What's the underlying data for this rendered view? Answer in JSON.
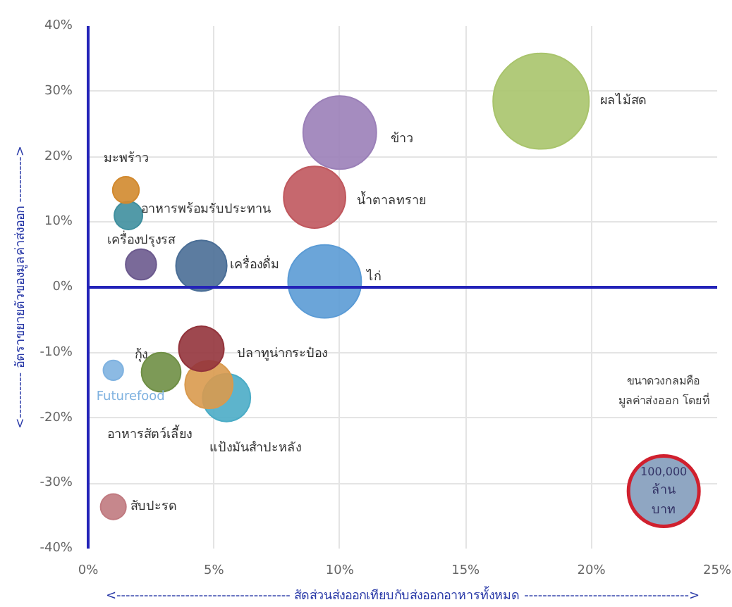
{
  "chart_data": {
    "type": "bubble",
    "xlabel": "<-------------------------------------- สัดส่วนส่งออกเทียบกับส่งออกอาหารทั้งหมด ------------------------------------>",
    "ylabel": "<---------- อัตราขยายตัวของมูลค่าส่งออก ---------->",
    "xlim": [
      0,
      25
    ],
    "ylim": [
      -40,
      40
    ],
    "xticks": [
      {
        "value": 0,
        "label": "0%"
      },
      {
        "value": 5,
        "label": "5%"
      },
      {
        "value": 10,
        "label": "10%"
      },
      {
        "value": 15,
        "label": "15%"
      },
      {
        "value": 20,
        "label": "20%"
      },
      {
        "value": 25,
        "label": "25%"
      }
    ],
    "yticks": [
      {
        "value": -40,
        "label": "-40%"
      },
      {
        "value": -30,
        "label": "-30%"
      },
      {
        "value": -20,
        "label": "-20%"
      },
      {
        "value": -10,
        "label": "-10%"
      },
      {
        "value": 0,
        "label": "0%"
      },
      {
        "value": 10,
        "label": "10%"
      },
      {
        "value": 20,
        "label": "20%"
      },
      {
        "value": 30,
        "label": "30%"
      },
      {
        "value": 40,
        "label": "40%"
      }
    ],
    "grid": true,
    "ref_lines": [
      {
        "axis": "y",
        "value": 0,
        "color": "#2323b8"
      }
    ],
    "size_legend": [
      {
        "value": 100000,
        "label": "100,000 ล้าน บาท"
      }
    ],
    "annotations": [
      "ขนาดวงกลมคือ",
      "มูลค่าส่งออก โดยที่"
    ],
    "series": [
      {
        "name": "ผลไม้สด",
        "color": "#a9c46c",
        "x": [
          18.0
        ],
        "values": [
          28.5
        ],
        "sizes": [
          185000
        ]
      },
      {
        "name": "ข้าว",
        "color": "#9b80b8",
        "x": [
          10.0
        ],
        "values": [
          23.7
        ],
        "sizes": [
          108000
        ]
      },
      {
        "name": "ไก่",
        "color": "#5b9bd5",
        "x": [
          9.4
        ],
        "values": [
          0.9
        ],
        "sizes": [
          108000
        ]
      },
      {
        "name": "น้ำตาลทราย",
        "color": "#c0585e",
        "x": [
          9.0
        ],
        "values": [
          13.8
        ],
        "sizes": [
          77000
        ]
      },
      {
        "name": "เครื่องดื่ม",
        "color": "#4a6e96",
        "x": [
          4.5
        ],
        "values": [
          3.3
        ],
        "sizes": [
          52000
        ]
      },
      {
        "name": "เครื่องปรุงรส",
        "color": "#6c5a8e",
        "x": [
          2.1
        ],
        "values": [
          3.5
        ],
        "sizes": [
          19000
        ]
      },
      {
        "name": "อาหารพร้อมรับประทาน",
        "color": "#3f8f9e",
        "x": [
          1.6
        ],
        "values": [
          11.0
        ],
        "sizes": [
          16000
        ]
      },
      {
        "name": "มะพร้าว",
        "color": "#d2892e",
        "x": [
          1.5
        ],
        "values": [
          14.9
        ],
        "sizes": [
          14000
        ]
      },
      {
        "name": "Futurefood",
        "color": "#7fb2e0",
        "x": [
          1.0
        ],
        "values": [
          -12.7
        ],
        "sizes": [
          8000
        ]
      },
      {
        "name": "กุ้ง",
        "color": "#6f8f45",
        "x": [
          2.9
        ],
        "values": [
          -13.0
        ],
        "sizes": [
          31000
        ]
      },
      {
        "name": "แป้งมันสำปะหลัง",
        "color": "#4bacc6",
        "x": [
          5.5
        ],
        "values": [
          -16.9
        ],
        "sizes": [
          46000
        ]
      },
      {
        "name": "อาหารสัตว์เลี้ยง",
        "color": "#d99a4e",
        "x": [
          4.8
        ],
        "values": [
          -14.9
        ],
        "sizes": [
          46000
        ]
      },
      {
        "name": "ปลาทูน่ากระป๋อง",
        "color": "#93343c",
        "x": [
          4.5
        ],
        "values": [
          -9.4
        ],
        "sizes": [
          41000
        ]
      },
      {
        "name": "สับปะรด",
        "color": "#c07a80",
        "x": [
          1.0
        ],
        "values": [
          -33.6
        ],
        "sizes": [
          13000
        ]
      }
    ]
  }
}
